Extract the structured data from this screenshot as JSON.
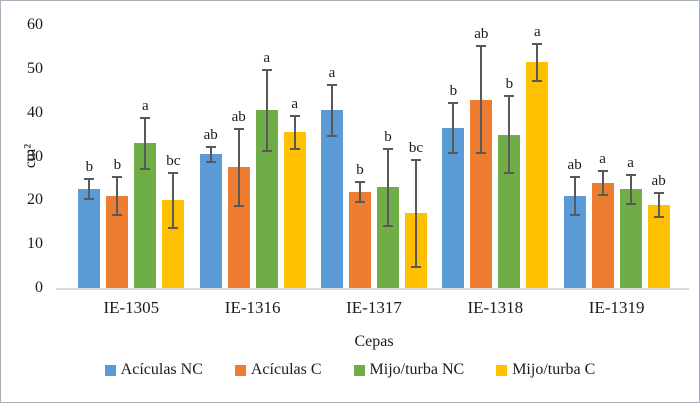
{
  "chart_data": {
    "type": "bar",
    "title": "",
    "xlabel": "Cepas",
    "ylabel": "cm²",
    "ylim": [
      0,
      60
    ],
    "yticks": [
      0,
      10,
      20,
      30,
      40,
      50,
      60
    ],
    "grid": false,
    "legend_position": "bottom",
    "error_bar_color": "#595959",
    "axis_line_color": "#d9d9d9",
    "categories": [
      "IE-1305",
      "IE-1316",
      "IE-1317",
      "IE-1318",
      "IE-1319"
    ],
    "series": [
      {
        "name": "Acículas NC",
        "color": "#5B9BD5",
        "values": [
          22.5,
          30.5,
          40.5,
          36.5,
          21
        ],
        "errors": [
          2.5,
          2,
          6,
          6,
          4.5
        ],
        "letters": [
          "b",
          "ab",
          "a",
          "b",
          "ab"
        ]
      },
      {
        "name": "Acículas C",
        "color": "#ED7D31",
        "values": [
          21,
          27.5,
          22,
          43,
          24
        ],
        "errors": [
          4.5,
          9,
          2.5,
          12.5,
          3
        ],
        "letters": [
          "b",
          "ab",
          "b",
          "ab",
          "a"
        ]
      },
      {
        "name": "Mijo/turba NC",
        "color": "#70AD47",
        "values": [
          33,
          40.5,
          23,
          35,
          22.5
        ],
        "errors": [
          6,
          9.5,
          9,
          9,
          3.5
        ],
        "letters": [
          "a",
          "a",
          "b",
          "b",
          "a"
        ]
      },
      {
        "name": "Mijo/turba C",
        "color": "#FFC000",
        "values": [
          20,
          35.5,
          17,
          51.5,
          19
        ],
        "errors": [
          6.5,
          4,
          12.5,
          4.5,
          3
        ],
        "letters": [
          "bc",
          "a",
          "bc",
          "a",
          "ab"
        ]
      }
    ]
  }
}
